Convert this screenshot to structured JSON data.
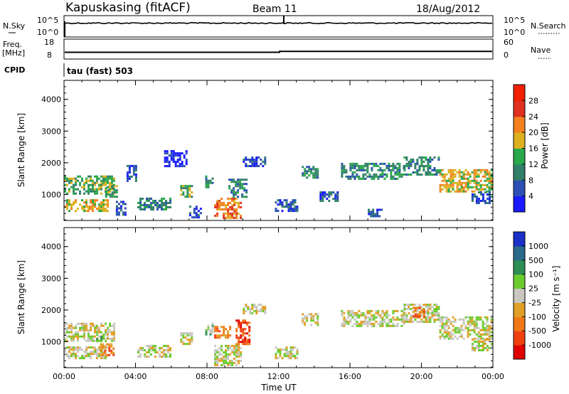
{
  "header": {
    "station": "Kapuskasing (fitACF)",
    "beam": "Beam 11",
    "date": "18/Aug/2012"
  },
  "status_panels": {
    "nsky": {
      "left_label": "N.Sky",
      "right_label": "N.Search",
      "left_ticks": [
        "10^5",
        "10^0"
      ],
      "right_ticks": [
        "10^5",
        "10^0"
      ]
    },
    "freq": {
      "left_label_1": "Freq.",
      "left_label_2": "[MHz]",
      "right_label": "Nave",
      "left_ticks": [
        "18",
        "8"
      ],
      "right_ticks": [
        "60",
        "0"
      ]
    },
    "cpid": {
      "label": "CPID",
      "value": "tau (fast) 503"
    }
  },
  "chart_data": [
    {
      "type": "heatmap",
      "name": "power",
      "ylabel": "Slant Range [km]",
      "ylim": [
        180,
        4600
      ],
      "yticks": [
        "1000",
        "2000",
        "3000",
        "4000"
      ],
      "xlim": [
        0,
        24
      ],
      "colorbar": {
        "label": "Power [dB]",
        "ticks": [
          "4",
          "8",
          "12",
          "16",
          "20",
          "24",
          "28"
        ],
        "colors": [
          "#1a1aff",
          "#2b4fb5",
          "#33806a",
          "#2aa84a",
          "#ddb020",
          "#f48020",
          "#e03020",
          "#f02000"
        ]
      },
      "regions": [
        {
          "t": [
            0.0,
            2.8
          ],
          "r": [
            1000,
            1600
          ],
          "level": 3
        },
        {
          "t": [
            0.0,
            2.5
          ],
          "r": [
            450,
            850
          ],
          "level": 4
        },
        {
          "t": [
            2.3,
            2.9
          ],
          "r": [
            900,
            1300
          ],
          "level": 3
        },
        {
          "t": [
            2.9,
            3.4
          ],
          "r": [
            350,
            800
          ],
          "level": 1
        },
        {
          "t": [
            3.5,
            4.0
          ],
          "r": [
            1400,
            2000
          ],
          "level": 1
        },
        {
          "t": [
            4.1,
            6.0
          ],
          "r": [
            500,
            900
          ],
          "level": 2
        },
        {
          "t": [
            5.6,
            6.8
          ],
          "r": [
            1900,
            2400
          ],
          "level": 0
        },
        {
          "t": [
            6.5,
            7.2
          ],
          "r": [
            900,
            1300
          ],
          "level": 3
        },
        {
          "t": [
            7.0,
            7.6
          ],
          "r": [
            250,
            650
          ],
          "level": 1
        },
        {
          "t": [
            7.9,
            8.3
          ],
          "r": [
            1200,
            1600
          ],
          "level": 2
        },
        {
          "t": [
            8.4,
            9.9
          ],
          "r": [
            250,
            900
          ],
          "level": 5
        },
        {
          "t": [
            9.2,
            10.2
          ],
          "r": [
            900,
            1500
          ],
          "level": 2
        },
        {
          "t": [
            10.0,
            11.2
          ],
          "r": [
            1900,
            2200
          ],
          "level": 1
        },
        {
          "t": [
            11.8,
            13.0
          ],
          "r": [
            500,
            850
          ],
          "level": 1
        },
        {
          "t": [
            13.3,
            14.2
          ],
          "r": [
            1500,
            1900
          ],
          "level": 2
        },
        {
          "t": [
            14.3,
            15.3
          ],
          "r": [
            800,
            1100
          ],
          "level": 1
        },
        {
          "t": [
            15.5,
            19.0
          ],
          "r": [
            1500,
            2000
          ],
          "level": 2
        },
        {
          "t": [
            17.0,
            17.8
          ],
          "r": [
            300,
            550
          ],
          "level": 1
        },
        {
          "t": [
            19.0,
            21.0
          ],
          "r": [
            1600,
            2200
          ],
          "level": 2
        },
        {
          "t": [
            21.0,
            23.9
          ],
          "r": [
            1100,
            1800
          ],
          "level": 4
        },
        {
          "t": [
            22.8,
            23.9
          ],
          "r": [
            700,
            1100
          ],
          "level": 1
        }
      ]
    },
    {
      "type": "heatmap",
      "name": "velocity",
      "ylabel": "Slant Range [km]",
      "ylim": [
        180,
        4600
      ],
      "yticks": [
        "1000",
        "2000",
        "3000",
        "4000"
      ],
      "xlim": [
        0,
        24
      ],
      "xticks": [
        "00:00",
        "04:00",
        "08:00",
        "12:00",
        "16:00",
        "20:00",
        "00:00"
      ],
      "xlabel": "Time UT",
      "colorbar": {
        "label": "Velocity [m s⁻¹]",
        "ticks": [
          "1000",
          "500",
          "100",
          "25",
          "-25",
          "-100",
          "-500",
          "-1000"
        ],
        "colors": [
          "#1a30c8",
          "#2a6a8a",
          "#2e8f55",
          "#6ccc2e",
          "#c8c8c0",
          "#e0a028",
          "#f07818",
          "#f04010",
          "#e00000"
        ]
      },
      "regions": [
        {
          "t": [
            0.0,
            2.8
          ],
          "r": [
            1000,
            1600
          ],
          "level": 4
        },
        {
          "t": [
            0.0,
            2.5
          ],
          "r": [
            450,
            850
          ],
          "level": 4
        },
        {
          "t": [
            2.0,
            2.8
          ],
          "r": [
            600,
            950
          ],
          "level": 6
        },
        {
          "t": [
            1.8,
            2.3
          ],
          "r": [
            1000,
            1250
          ],
          "level": 3
        },
        {
          "t": [
            4.1,
            6.0
          ],
          "r": [
            500,
            900
          ],
          "level": 4
        },
        {
          "t": [
            6.5,
            7.2
          ],
          "r": [
            900,
            1300
          ],
          "level": 4
        },
        {
          "t": [
            7.9,
            8.3
          ],
          "r": [
            1200,
            1600
          ],
          "level": 3
        },
        {
          "t": [
            8.4,
            9.3
          ],
          "r": [
            1100,
            1500
          ],
          "level": 6
        },
        {
          "t": [
            8.4,
            9.9
          ],
          "r": [
            250,
            900
          ],
          "level": 4
        },
        {
          "t": [
            9.6,
            10.4
          ],
          "r": [
            900,
            1700
          ],
          "level": 7
        },
        {
          "t": [
            10.0,
            11.2
          ],
          "r": [
            1900,
            2200
          ],
          "level": 4
        },
        {
          "t": [
            11.8,
            13.0
          ],
          "r": [
            500,
            850
          ],
          "level": 4
        },
        {
          "t": [
            13.3,
            14.2
          ],
          "r": [
            1500,
            1900
          ],
          "level": 4
        },
        {
          "t": [
            15.5,
            19.0
          ],
          "r": [
            1500,
            2000
          ],
          "level": 4
        },
        {
          "t": [
            19.0,
            21.0
          ],
          "r": [
            1600,
            2200
          ],
          "level": 4
        },
        {
          "t": [
            19.5,
            20.2
          ],
          "r": [
            1800,
            2100
          ],
          "level": 6
        },
        {
          "t": [
            21.0,
            23.9
          ],
          "r": [
            1100,
            1800
          ],
          "level": 4
        },
        {
          "t": [
            22.8,
            23.9
          ],
          "r": [
            700,
            1100
          ],
          "level": 4
        }
      ]
    }
  ]
}
